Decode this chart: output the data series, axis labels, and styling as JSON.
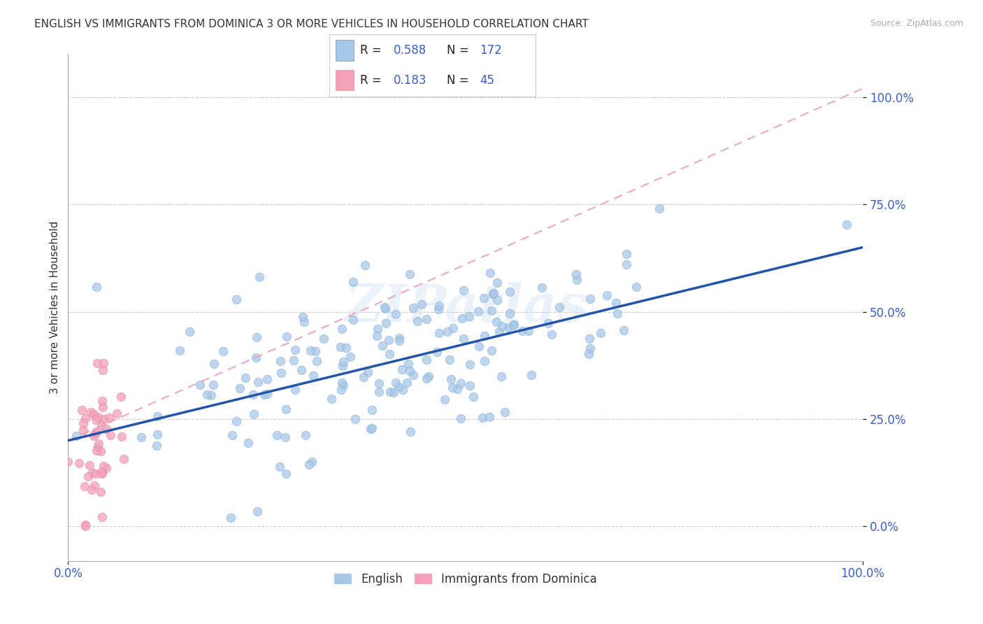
{
  "title": "ENGLISH VS IMMIGRANTS FROM DOMINICA 3 OR MORE VEHICLES IN HOUSEHOLD CORRELATION CHART",
  "source": "Source: ZipAtlas.com",
  "ylabel": "3 or more Vehicles in Household",
  "xlim": [
    0.0,
    1.0
  ],
  "ylim": [
    -0.08,
    1.1
  ],
  "yticks": [
    0.0,
    0.25,
    0.5,
    0.75,
    1.0
  ],
  "ytick_labels": [
    "0.0%",
    "25.0%",
    "50.0%",
    "75.0%",
    "100.0%"
  ],
  "blue_color": "#a8c8e8",
  "blue_edge_color": "#7aaad0",
  "pink_color": "#f4a0b8",
  "pink_edge_color": "#e080a0",
  "blue_line_color": "#2255aa",
  "pink_line_color": "#e8a0b8",
  "title_fontsize": 11,
  "background_color": "#ffffff",
  "seed": 42,
  "english_n": 172,
  "immigrant_n": 45,
  "english_R": 0.588,
  "immigrant_R": 0.183,
  "blue_line_start_y": 0.2,
  "blue_line_end_y": 0.65,
  "pink_line_start_y": 0.2,
  "pink_line_end_y": 1.02
}
